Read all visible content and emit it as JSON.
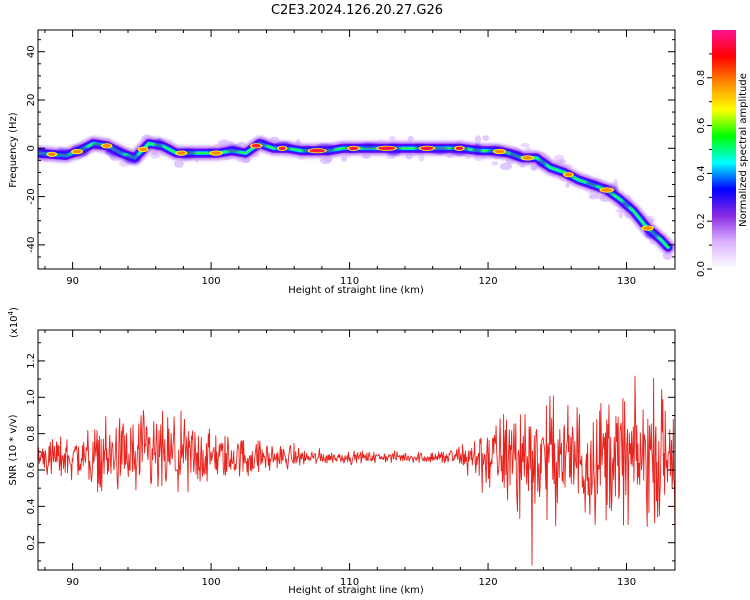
{
  "title": "C2E3.2024.126.20.27.G26",
  "chart_data": [
    {
      "type": "heatmap",
      "xlabel": "Height of straight line (km)",
      "ylabel": "Frequency (Hz)",
      "xlim": [
        87.5,
        133.5
      ],
      "ylim": [
        -50,
        49
      ],
      "xticks": [
        "90",
        "100",
        "110",
        "120",
        "130"
      ],
      "xtick_values": [
        90,
        100,
        110,
        120,
        130
      ],
      "yticks": [
        "40",
        "20",
        "0",
        "-20",
        "-40"
      ],
      "ytick_values": [
        40,
        20,
        0,
        -20,
        -40
      ],
      "ridge": [
        {
          "x": 87.5,
          "y": -2
        },
        {
          "x": 88.5,
          "y": -2.5
        },
        {
          "x": 89.5,
          "y": -3
        },
        {
          "x": 90.5,
          "y": -1
        },
        {
          "x": 91.5,
          "y": 2
        },
        {
          "x": 92.5,
          "y": 1
        },
        {
          "x": 93.5,
          "y": -2
        },
        {
          "x": 94.5,
          "y": -4
        },
        {
          "x": 95.5,
          "y": 2
        },
        {
          "x": 96.5,
          "y": 1
        },
        {
          "x": 97.5,
          "y": -2
        },
        {
          "x": 98.5,
          "y": -2
        },
        {
          "x": 99.5,
          "y": -2
        },
        {
          "x": 100.5,
          "y": -2
        },
        {
          "x": 101.5,
          "y": -1
        },
        {
          "x": 102.5,
          "y": -2
        },
        {
          "x": 103.5,
          "y": 2
        },
        {
          "x": 104.5,
          "y": 0
        },
        {
          "x": 105.5,
          "y": 0
        },
        {
          "x": 106.5,
          "y": -1
        },
        {
          "x": 107.5,
          "y": -1
        },
        {
          "x": 108.5,
          "y": -1
        },
        {
          "x": 109.5,
          "y": 0
        },
        {
          "x": 110.5,
          "y": 0
        },
        {
          "x": 112,
          "y": 0
        },
        {
          "x": 114,
          "y": 0
        },
        {
          "x": 116,
          "y": 0
        },
        {
          "x": 118,
          "y": 0
        },
        {
          "x": 119.5,
          "y": -1
        },
        {
          "x": 120.5,
          "y": -1
        },
        {
          "x": 121.5,
          "y": -2
        },
        {
          "x": 122.5,
          "y": -4
        },
        {
          "x": 123.5,
          "y": -4
        },
        {
          "x": 124.5,
          "y": -8
        },
        {
          "x": 125.5,
          "y": -10
        },
        {
          "x": 126.5,
          "y": -13
        },
        {
          "x": 127.5,
          "y": -15
        },
        {
          "x": 128.5,
          "y": -17
        },
        {
          "x": 129.5,
          "y": -21
        },
        {
          "x": 130.5,
          "y": -26
        },
        {
          "x": 131.5,
          "y": -33
        },
        {
          "x": 132.5,
          "y": -38
        },
        {
          "x": 133,
          "y": -41
        }
      ],
      "colorbar": {
        "label": "Normalized spectral amplitude",
        "ticks": [
          "0.0",
          "0.2",
          "0.4",
          "0.6",
          "0.8"
        ],
        "tick_values": [
          0,
          0.2,
          0.4,
          0.6,
          0.8
        ],
        "range": [
          0,
          1
        ],
        "colormap": [
          "#ffffff",
          "#dcb4ff",
          "#8a2be2",
          "#0000ff",
          "#00ffff",
          "#00ff00",
          "#ffff00",
          "#ff8c00",
          "#ff0000",
          "#ff1493"
        ]
      }
    },
    {
      "type": "line",
      "xlabel": "Height of straight line (km)",
      "ylabel": "SNR (10 * v/v)",
      "multiplier": "(x10",
      "multiplier_exp": "4",
      "multiplier_close": ")",
      "xlim": [
        87.5,
        133.5
      ],
      "ylim": [
        0.05,
        1.37
      ],
      "xticks": [
        "90",
        "100",
        "110",
        "120",
        "130"
      ],
      "xtick_values": [
        90,
        100,
        110,
        120,
        130
      ],
      "yticks": [
        "0.2",
        "0.4",
        "0.6",
        "0.8",
        "1.0",
        "1.2"
      ],
      "ytick_values": [
        0.2,
        0.4,
        0.6,
        0.8,
        1.0,
        1.2
      ],
      "color": "#e8221c",
      "mean": 0.67,
      "amplitude_profile": [
        {
          "x": 87.5,
          "a": 0.12
        },
        {
          "x": 90,
          "a": 0.15
        },
        {
          "x": 92,
          "a": 0.2
        },
        {
          "x": 95,
          "a": 0.3
        },
        {
          "x": 98,
          "a": 0.25
        },
        {
          "x": 101,
          "a": 0.15
        },
        {
          "x": 104,
          "a": 0.1
        },
        {
          "x": 107,
          "a": 0.05
        },
        {
          "x": 110,
          "a": 0.035
        },
        {
          "x": 115,
          "a": 0.035
        },
        {
          "x": 117.5,
          "a": 0.06
        },
        {
          "x": 120,
          "a": 0.2
        },
        {
          "x": 122,
          "a": 0.38
        },
        {
          "x": 125,
          "a": 0.35
        },
        {
          "x": 129,
          "a": 0.42
        },
        {
          "x": 131,
          "a": 0.4
        },
        {
          "x": 133.5,
          "a": 0.42
        }
      ]
    }
  ]
}
